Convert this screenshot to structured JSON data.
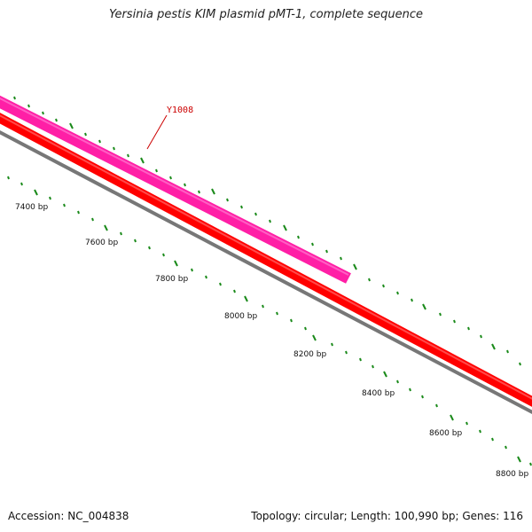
{
  "title": "Yersinia pestis KIM plasmid pMT-1, complete sequence",
  "feature_label": "Y1008",
  "scale_labels": [
    "7400 bp",
    "7600 bp",
    "7800 bp",
    "8000 bp",
    "8200 bp",
    "8400 bp",
    "8600 bp",
    "8800 bp"
  ],
  "footer": {
    "accession": "Accession: NC_004838",
    "summary": "Topology: circular; Length: 100,990 bp; Genes: 116"
  },
  "colors": {
    "feature_gene": "#ff1fa6",
    "cds_track": "#ff0000",
    "backbone": "#777777",
    "tick_marks": "#1a8a1a",
    "feature_label_text": "#cc0000"
  }
}
